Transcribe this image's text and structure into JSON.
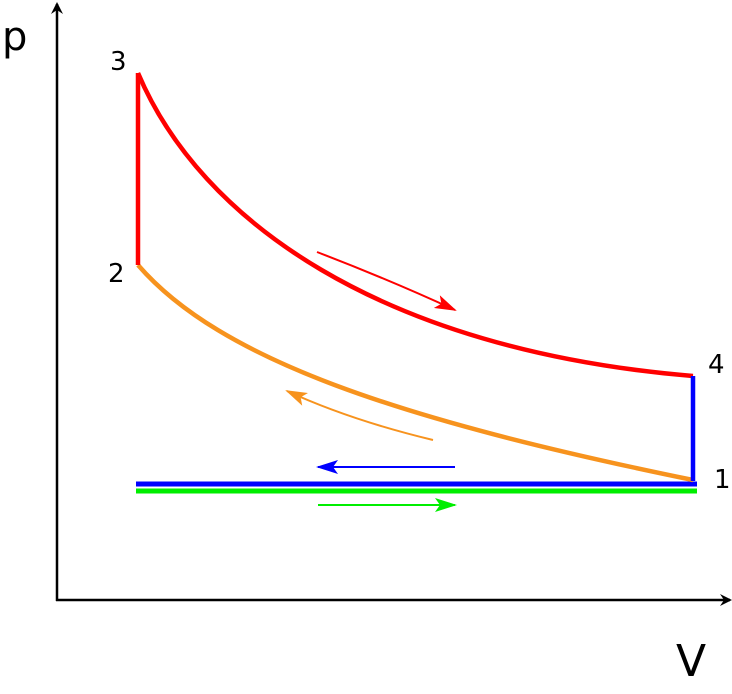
{
  "axes": {
    "y_label": "p",
    "x_label": "V"
  },
  "points": {
    "p1": "1",
    "p2": "2",
    "p3": "3",
    "p4": "4"
  },
  "colors": {
    "expansion": "#ff0000",
    "compression": "#f7931e",
    "heat_rejection": "#0000ff",
    "intake": "#00ee00",
    "axis": "#000000"
  }
}
